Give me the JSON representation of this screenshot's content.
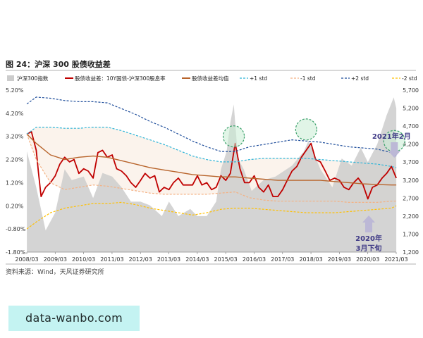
{
  "figure": {
    "title": "图 24：沪深 300 股债收益差",
    "source": "资料来源：Wind，天风证券研究所",
    "watermark": "data-wanbo.com"
  },
  "chart_data": {
    "type": "line",
    "title": "图 24：沪深 300 股债收益差",
    "x_ticks": [
      "2008/03",
      "2009/03",
      "2010/03",
      "2011/03",
      "2012/03",
      "2013/03",
      "2014/03",
      "2015/03",
      "2016/03",
      "2017/03",
      "2018/03",
      "2019/03",
      "2020/03",
      "2021/03"
    ],
    "x_range": [
      "2008/03",
      "2021/03"
    ],
    "y_left": {
      "ticks": [
        "5.20%",
        "4.20%",
        "3.20%",
        "2.20%",
        "1.20%",
        "0.20%",
        "-0.80%",
        "-1.80%"
      ],
      "range": [
        -1.8,
        5.2
      ]
    },
    "y_right": {
      "ticks": [
        "5,700",
        "5,200",
        "4,700",
        "4,200",
        "3,700",
        "3,200",
        "2,700",
        "2,200",
        "1,700",
        "1,200"
      ],
      "range": [
        1200,
        5700
      ]
    },
    "legend_placement": "top",
    "grid": false,
    "series": [
      {
        "name": "沪深300指数",
        "kind": "area",
        "axis": "right",
        "color": "#cccccc",
        "x": [
          2008.17,
          2008.5,
          2008.83,
          2009.17,
          2009.5,
          2009.75,
          2010.17,
          2010.5,
          2010.83,
          2011.17,
          2011.5,
          2011.83,
          2012.17,
          2012.5,
          2012.92,
          2013.17,
          2013.5,
          2013.92,
          2014.17,
          2014.5,
          2014.83,
          2015.0,
          2015.2,
          2015.33,
          2015.45,
          2015.6,
          2015.8,
          2016.08,
          2016.5,
          2016.92,
          2017.5,
          2017.92,
          2018.08,
          2018.5,
          2018.92,
          2019.25,
          2019.6,
          2019.92,
          2020.17,
          2020.5,
          2020.83,
          2021.08,
          2021.17
        ],
        "values": [
          4000,
          3000,
          1800,
          2300,
          3500,
          3200,
          3300,
          2700,
          3400,
          3300,
          3000,
          2600,
          2600,
          2500,
          2200,
          2600,
          2200,
          2400,
          2200,
          2200,
          2600,
          3500,
          4000,
          4800,
          5300,
          3800,
          3500,
          2900,
          3200,
          3300,
          3600,
          4000,
          4300,
          3500,
          3000,
          3800,
          3600,
          4100,
          3700,
          4200,
          5000,
          5500,
          5200
        ]
      },
      {
        "name": "股债收益差：10Y国债-沪深300股息率",
        "kind": "line",
        "axis": "left",
        "color": "#c00000",
        "x": [
          2008.17,
          2008.33,
          2008.5,
          2008.58,
          2008.67,
          2008.83,
          2009.0,
          2009.17,
          2009.33,
          2009.5,
          2009.67,
          2009.83,
          2010.0,
          2010.17,
          2010.33,
          2010.5,
          2010.67,
          2010.83,
          2011.0,
          2011.17,
          2011.33,
          2011.5,
          2011.67,
          2011.83,
          2012.0,
          2012.17,
          2012.33,
          2012.5,
          2012.67,
          2012.83,
          2013.0,
          2013.17,
          2013.33,
          2013.5,
          2013.67,
          2013.83,
          2014.0,
          2014.17,
          2014.33,
          2014.5,
          2014.67,
          2014.83,
          2015.0,
          2015.17,
          2015.33,
          2015.5,
          2015.67,
          2015.83,
          2016.0,
          2016.17,
          2016.33,
          2016.5,
          2016.67,
          2016.83,
          2017.0,
          2017.17,
          2017.33,
          2017.5,
          2017.67,
          2017.83,
          2018.0,
          2018.17,
          2018.33,
          2018.5,
          2018.67,
          2018.83,
          2019.0,
          2019.17,
          2019.33,
          2019.5,
          2019.67,
          2019.83,
          2020.0,
          2020.17,
          2020.33,
          2020.5,
          2020.67,
          2020.83,
          2021.0,
          2021.17
        ],
        "values": [
          3.3,
          3.4,
          2.6,
          1.6,
          0.6,
          1.0,
          1.2,
          1.5,
          2.0,
          2.3,
          2.1,
          2.2,
          1.6,
          1.8,
          1.7,
          1.4,
          2.5,
          2.6,
          2.3,
          2.4,
          1.8,
          1.7,
          1.5,
          1.2,
          1.0,
          1.3,
          1.6,
          1.4,
          1.5,
          0.8,
          1.0,
          0.9,
          1.2,
          1.4,
          1.1,
          1.1,
          1.1,
          1.5,
          1.1,
          1.2,
          0.9,
          1.0,
          1.5,
          1.3,
          1.6,
          2.9,
          1.8,
          1.2,
          1.2,
          1.5,
          1.0,
          0.8,
          1.1,
          0.6,
          0.6,
          0.9,
          1.3,
          1.7,
          1.9,
          2.3,
          2.6,
          2.9,
          2.2,
          2.1,
          1.7,
          1.3,
          1.4,
          1.3,
          1.0,
          0.9,
          1.2,
          1.4,
          1.1,
          0.5,
          1.0,
          1.1,
          1.4,
          1.6,
          1.9,
          1.4
        ]
      },
      {
        "name": "股债收益差均值",
        "kind": "line",
        "axis": "left",
        "color": "#b8642b",
        "x": [
          2008.17,
          2008.5,
          2009.0,
          2009.5,
          2010.0,
          2010.5,
          2011.0,
          2011.5,
          2012.0,
          2012.5,
          2013.0,
          2013.5,
          2014.0,
          2014.5,
          2015.0,
          2015.5,
          2016.0,
          2016.5,
          2017.0,
          2017.5,
          2018.0,
          2018.5,
          2019.0,
          2019.5,
          2020.0,
          2020.5,
          2021.0,
          2021.17
        ],
        "values": [
          3.3,
          2.9,
          2.4,
          2.2,
          2.3,
          2.35,
          2.3,
          2.15,
          2.0,
          1.85,
          1.75,
          1.65,
          1.55,
          1.5,
          1.45,
          1.45,
          1.4,
          1.35,
          1.3,
          1.3,
          1.3,
          1.3,
          1.25,
          1.2,
          1.15,
          1.12,
          1.1,
          1.1
        ]
      },
      {
        "name": "+1 std",
        "kind": "line",
        "axis": "left",
        "style": "dashed",
        "color": "#2fb5d8",
        "x": [
          2008.17,
          2008.5,
          2009.0,
          2009.5,
          2010.0,
          2010.5,
          2011.0,
          2011.5,
          2012.0,
          2012.5,
          2013.0,
          2013.5,
          2014.0,
          2014.5,
          2015.0,
          2015.5,
          2016.0,
          2016.5,
          2017.0,
          2017.5,
          2018.0,
          2018.5,
          2019.0,
          2019.5,
          2020.0,
          2020.5,
          2021.0,
          2021.17
        ],
        "values": [
          3.3,
          3.6,
          3.6,
          3.55,
          3.55,
          3.6,
          3.6,
          3.45,
          3.25,
          3.05,
          2.85,
          2.6,
          2.35,
          2.2,
          2.1,
          2.1,
          2.2,
          2.25,
          2.25,
          2.25,
          2.25,
          2.2,
          2.15,
          2.1,
          2.05,
          2.0,
          1.9,
          1.85
        ]
      },
      {
        "name": "-1 std",
        "kind": "line",
        "axis": "left",
        "style": "dashed",
        "color": "#f4b183",
        "x": [
          2008.17,
          2008.5,
          2009.0,
          2009.5,
          2010.0,
          2010.5,
          2011.0,
          2011.5,
          2012.0,
          2012.5,
          2013.0,
          2013.5,
          2014.0,
          2014.5,
          2015.0,
          2015.5,
          2016.0,
          2016.5,
          2017.0,
          2017.5,
          2018.0,
          2018.5,
          2019.0,
          2019.5,
          2020.0,
          2020.5,
          2021.0,
          2021.17
        ],
        "values": [
          3.3,
          2.2,
          1.2,
          0.9,
          1.0,
          1.1,
          1.05,
          0.95,
          0.85,
          0.75,
          0.7,
          0.7,
          0.7,
          0.7,
          0.75,
          0.8,
          0.55,
          0.45,
          0.4,
          0.4,
          0.4,
          0.4,
          0.4,
          0.35,
          0.35,
          0.35,
          0.4,
          0.4
        ]
      },
      {
        "name": "+2 std",
        "kind": "line",
        "axis": "left",
        "style": "dashed",
        "color": "#1f4e9b",
        "x": [
          2008.17,
          2008.5,
          2009.0,
          2009.5,
          2010.0,
          2010.5,
          2011.0,
          2011.5,
          2012.0,
          2012.5,
          2013.0,
          2013.5,
          2014.0,
          2014.5,
          2015.0,
          2015.5,
          2016.0,
          2016.5,
          2017.0,
          2017.5,
          2018.0,
          2018.5,
          2019.0,
          2019.5,
          2020.0,
          2020.5,
          2021.0,
          2021.17
        ],
        "values": [
          4.6,
          4.9,
          4.85,
          4.75,
          4.7,
          4.7,
          4.65,
          4.4,
          4.15,
          3.85,
          3.6,
          3.3,
          3.0,
          2.75,
          2.55,
          2.55,
          2.75,
          2.85,
          2.95,
          3.05,
          3.0,
          2.95,
          2.85,
          2.75,
          2.7,
          2.65,
          2.5,
          2.35
        ]
      },
      {
        "name": "-2 std",
        "kind": "line",
        "axis": "left",
        "style": "dashed",
        "color": "#ffc000",
        "x": [
          2008.17,
          2008.5,
          2009.0,
          2009.5,
          2010.0,
          2010.5,
          2011.0,
          2011.5,
          2012.0,
          2012.5,
          2013.0,
          2013.5,
          2014.0,
          2014.5,
          2015.0,
          2015.5,
          2016.0,
          2016.5,
          2017.0,
          2017.5,
          2018.0,
          2018.5,
          2019.0,
          2019.5,
          2020.0,
          2020.5,
          2021.0,
          2021.17
        ],
        "values": [
          -0.8,
          -0.5,
          -0.1,
          0.1,
          0.2,
          0.3,
          0.3,
          0.35,
          0.25,
          0.1,
          0.0,
          -0.1,
          -0.2,
          -0.1,
          0.05,
          0.1,
          0.1,
          0.05,
          0.0,
          -0.05,
          -0.1,
          -0.1,
          -0.1,
          -0.05,
          0.0,
          0.05,
          0.1,
          0.2
        ]
      }
    ],
    "annotations": [
      {
        "text": "2021年2月",
        "x": 2021.1,
        "arrow": "down"
      },
      {
        "text": "2020年",
        "text2": "3月下旬",
        "x": 2020.2,
        "arrow": "up"
      }
    ],
    "highlight_circles": [
      {
        "x": 2015.45,
        "y": 3.2
      },
      {
        "x": 2018.0,
        "y": 3.5
      },
      {
        "x": 2021.1,
        "y": 3.0
      }
    ]
  }
}
